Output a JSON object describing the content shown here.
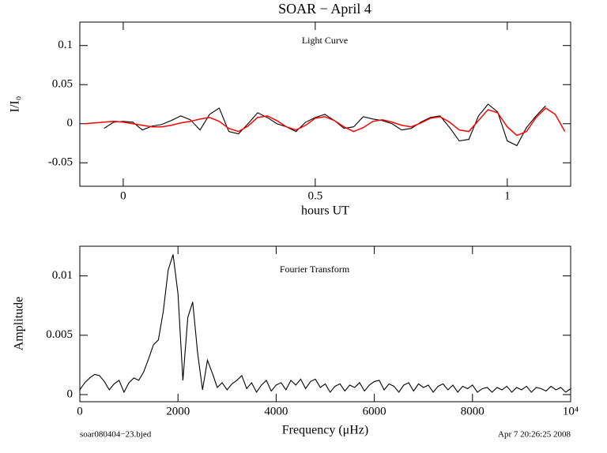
{
  "title": "SOAR − April 4",
  "footer": {
    "left": "soar080404−23.bjed",
    "right": "Apr  7 20:26:25 2008"
  },
  "chart_data": [
    {
      "type": "line",
      "annotation": "Light Curve",
      "xlabel": "hours UT",
      "ylabel": "I/I₀",
      "xlim": [
        -0.113,
        1.165
      ],
      "ylim": [
        -0.08,
        0.13
      ],
      "xticks": [
        0,
        0.5,
        1
      ],
      "yticks": [
        -0.05,
        0,
        0.05,
        0.1
      ],
      "x": [
        -0.1,
        -0.075,
        -0.05,
        -0.025,
        0,
        0.025,
        0.05,
        0.075,
        0.1,
        0.125,
        0.15,
        0.175,
        0.2,
        0.225,
        0.25,
        0.275,
        0.3,
        0.325,
        0.35,
        0.375,
        0.4,
        0.425,
        0.45,
        0.475,
        0.5,
        0.525,
        0.55,
        0.575,
        0.6,
        0.625,
        0.65,
        0.675,
        0.7,
        0.725,
        0.75,
        0.775,
        0.8,
        0.825,
        0.85,
        0.875,
        0.9,
        0.925,
        0.95,
        0.975,
        1.0,
        1.025,
        1.05,
        1.075,
        1.1,
        1.125,
        1.15
      ],
      "series": [
        {
          "color": "#000000",
          "values": [
            null,
            null,
            -0.006,
            0.002,
            0.003,
            0.002,
            -0.008,
            -0.003,
            -0.001,
            0.004,
            0.01,
            0.005,
            -0.008,
            0.012,
            0.02,
            -0.01,
            -0.013,
            0.0,
            0.014,
            0.008,
            0.0,
            -0.004,
            -0.01,
            0.002,
            0.008,
            0.012,
            0.004,
            -0.006,
            -0.004,
            0.009,
            0.006,
            0.004,
            0.0,
            -0.008,
            -0.006,
            0.002,
            0.008,
            0.01,
            -0.005,
            -0.022,
            -0.02,
            0.01,
            0.025,
            0.015,
            -0.022,
            -0.028,
            -0.005,
            0.01,
            0.023,
            null,
            null
          ]
        },
        {
          "color": "#ff0000",
          "values": [
            0.0,
            0.001,
            0.002,
            0.003,
            0.002,
            0.0,
            -0.002,
            -0.004,
            -0.004,
            -0.002,
            0.001,
            0.003,
            0.006,
            0.008,
            0.003,
            -0.006,
            -0.01,
            -0.003,
            0.008,
            0.01,
            0.004,
            -0.004,
            -0.008,
            -0.002,
            0.007,
            0.009,
            0.004,
            -0.004,
            -0.01,
            -0.005,
            0.003,
            0.005,
            0.002,
            -0.002,
            -0.004,
            0.001,
            0.007,
            0.009,
            0.002,
            -0.008,
            -0.01,
            0.004,
            0.018,
            0.014,
            -0.004,
            -0.015,
            -0.01,
            0.008,
            0.02,
            0.012,
            -0.01
          ]
        }
      ]
    },
    {
      "type": "line",
      "annotation": "Fourier Transform",
      "xlabel": "Frequency (μHz)",
      "ylabel": "Amplitude",
      "xlim": [
        0,
        10000
      ],
      "ylim": [
        -0.0006,
        0.0125
      ],
      "xticks": [
        0,
        2000,
        4000,
        6000,
        8000,
        {
          "value": 10000,
          "label": "10⁴"
        }
      ],
      "yticks": [
        0,
        0.005,
        0.01
      ],
      "x": [
        0,
        100,
        200,
        300,
        400,
        500,
        600,
        700,
        800,
        900,
        1000,
        1100,
        1200,
        1300,
        1400,
        1500,
        1600,
        1700,
        1800,
        1900,
        2000,
        2100,
        2200,
        2300,
        2400,
        2500,
        2600,
        2700,
        2800,
        2900,
        3000,
        3100,
        3200,
        3300,
        3400,
        3500,
        3600,
        3700,
        3800,
        3900,
        4000,
        4100,
        4200,
        4300,
        4400,
        4500,
        4600,
        4700,
        4800,
        4900,
        5000,
        5100,
        5200,
        5300,
        5400,
        5500,
        5600,
        5700,
        5800,
        5900,
        6000,
        6100,
        6200,
        6300,
        6400,
        6500,
        6600,
        6700,
        6800,
        6900,
        7000,
        7100,
        7200,
        7300,
        7400,
        7500,
        7600,
        7700,
        7800,
        7900,
        8000,
        8100,
        8200,
        8300,
        8400,
        8500,
        8600,
        8700,
        8800,
        8900,
        9000,
        9100,
        9200,
        9300,
        9400,
        9500,
        9600,
        9700,
        9800,
        9900,
        10000
      ],
      "series": [
        {
          "color": "#000000",
          "values": [
            0.0004,
            0.001,
            0.0014,
            0.0017,
            0.0016,
            0.0011,
            0.0004,
            0.0009,
            0.0012,
            0.0002,
            0.001,
            0.0014,
            0.0012,
            0.0019,
            0.003,
            0.0042,
            0.0046,
            0.007,
            0.0105,
            0.0118,
            0.0085,
            0.0012,
            0.0065,
            0.0078,
            0.0035,
            0.0004,
            0.0029,
            0.0018,
            0.0006,
            0.001,
            0.0004,
            0.0009,
            0.0012,
            0.0016,
            0.0005,
            0.001,
            0.0002,
            0.0008,
            0.0012,
            0.0003,
            0.0008,
            0.001,
            0.0004,
            0.0012,
            0.0008,
            0.0013,
            0.0005,
            0.0011,
            0.0013,
            0.0006,
            0.0009,
            0.0002,
            0.0007,
            0.0009,
            0.0003,
            0.0008,
            0.0006,
            0.001,
            0.0003,
            0.0008,
            0.0011,
            0.0012,
            0.0004,
            0.0009,
            0.0007,
            0.0002,
            0.0008,
            0.001,
            0.0003,
            0.0009,
            0.0006,
            0.0008,
            0.0002,
            0.0007,
            0.0009,
            0.0004,
            0.0008,
            0.0002,
            0.0007,
            0.0005,
            0.0008,
            0.0002,
            0.0005,
            0.0006,
            0.0002,
            0.0006,
            0.0004,
            0.0007,
            0.0002,
            0.0006,
            0.0004,
            0.0007,
            0.0002,
            0.0006,
            0.0005,
            0.0003,
            0.0007,
            0.0004,
            0.0006,
            0.0002,
            0.0005
          ]
        }
      ]
    }
  ]
}
